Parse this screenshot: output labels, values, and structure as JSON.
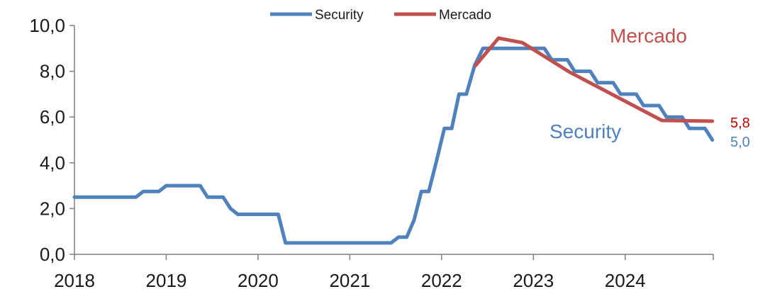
{
  "chart_data": {
    "type": "line",
    "title": "",
    "xlabel": "",
    "ylabel": "",
    "ylim": [
      0,
      10
    ],
    "xlim": [
      2018.0,
      2024.96
    ],
    "grid": false,
    "legend_position": "top",
    "x_tick_labels": [
      "2018",
      "2019",
      "2020",
      "2021",
      "2022",
      "2023",
      "2024"
    ],
    "y_tick_labels": [
      "0,0",
      "2,0",
      "4,0",
      "6,0",
      "8,0",
      "10,0"
    ],
    "series": [
      {
        "name": "Security",
        "color": "#4f81bd",
        "end_label": "5,0",
        "points": [
          [
            2018.0,
            2.5
          ],
          [
            2018.67,
            2.5
          ],
          [
            2018.75,
            2.75
          ],
          [
            2018.92,
            2.75
          ],
          [
            2019.0,
            3.0
          ],
          [
            2019.37,
            3.0
          ],
          [
            2019.45,
            2.5
          ],
          [
            2019.62,
            2.5
          ],
          [
            2019.7,
            2.0
          ],
          [
            2019.78,
            1.75
          ],
          [
            2020.22,
            1.75
          ],
          [
            2020.3,
            0.5
          ],
          [
            2021.45,
            0.5
          ],
          [
            2021.53,
            0.75
          ],
          [
            2021.62,
            0.75
          ],
          [
            2021.7,
            1.5
          ],
          [
            2021.78,
            2.75
          ],
          [
            2021.86,
            2.75
          ],
          [
            2021.94,
            4.0
          ],
          [
            2022.03,
            5.5
          ],
          [
            2022.11,
            5.5
          ],
          [
            2022.19,
            7.0
          ],
          [
            2022.27,
            7.0
          ],
          [
            2022.36,
            8.25
          ],
          [
            2022.45,
            9.0
          ],
          [
            2023.12,
            9.0
          ],
          [
            2023.2,
            8.5
          ],
          [
            2023.37,
            8.5
          ],
          [
            2023.45,
            8.0
          ],
          [
            2023.62,
            8.0
          ],
          [
            2023.7,
            7.5
          ],
          [
            2023.87,
            7.5
          ],
          [
            2023.95,
            7.0
          ],
          [
            2024.12,
            7.0
          ],
          [
            2024.2,
            6.5
          ],
          [
            2024.37,
            6.5
          ],
          [
            2024.45,
            6.0
          ],
          [
            2024.62,
            6.0
          ],
          [
            2024.7,
            5.5
          ],
          [
            2024.87,
            5.5
          ],
          [
            2024.95,
            5.0
          ]
        ]
      },
      {
        "name": "Mercado",
        "color": "#c0504d",
        "end_label": "5,8",
        "points": [
          [
            2022.37,
            8.25
          ],
          [
            2022.62,
            9.45
          ],
          [
            2022.88,
            9.25
          ],
          [
            2023.4,
            7.95
          ],
          [
            2023.9,
            6.9
          ],
          [
            2024.4,
            5.85
          ],
          [
            2024.95,
            5.82
          ]
        ]
      }
    ],
    "annotations": [
      "Mercado",
      "Security"
    ]
  }
}
